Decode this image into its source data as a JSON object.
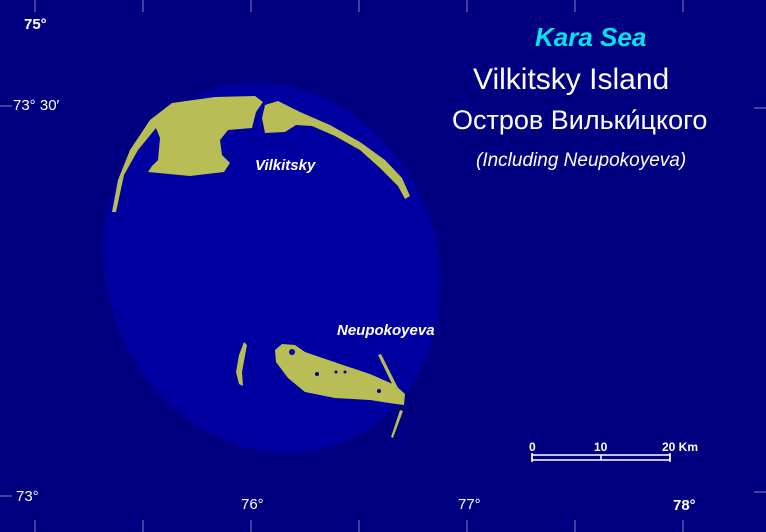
{
  "colors": {
    "sea": "#000080",
    "shelf": "#0000a0",
    "land": "#b9bd55",
    "title_accent": "#00e5ee",
    "text": "#ffffff"
  },
  "titles": {
    "sea": "Kara Sea",
    "english": "Vilkitsky Island",
    "russian": "Остров Вильки́цкого",
    "subtitle": "(Including Neupokoyeva)"
  },
  "labels": {
    "vilkitsky": "Vilkitsky",
    "neupokoyeva": "Neupokoyeva"
  },
  "latitude_labels": [
    "75°",
    "73° 30′",
    "73°"
  ],
  "longitude_labels": [
    "76°",
    "77°",
    "78°"
  ],
  "scale_bar": {
    "labels": [
      "0",
      "10",
      "20 Km"
    ]
  }
}
